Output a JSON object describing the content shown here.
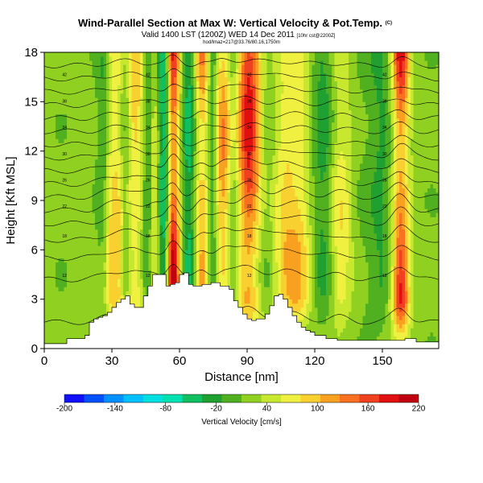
{
  "chart_data": {
    "type": "heatmap",
    "title": "Wind-Parallel Section at Max W: Vertical Velocity & Pot.Temp.",
    "copyright": "(C)",
    "subtitle": "Valid 1400 LST (1200Z) WED 14 Dec 2011",
    "subtitle_extra": "[10hr cst@2200Z]",
    "small_line": "hod/lmaz=217@33.76/80.16,1750m",
    "xlabel": "Distance [nm]",
    "ylabel": "Height [Kft MSL]",
    "xlim": [
      0,
      175
    ],
    "ylim": [
      0,
      18
    ],
    "xticks": [
      0,
      30,
      60,
      90,
      120,
      150
    ],
    "yticks": [
      0,
      3,
      6,
      9,
      12,
      15,
      18
    ],
    "colorbar": {
      "label": "Vertical Velocity [cm/s]",
      "ticks": [
        -200,
        -140,
        -80,
        -20,
        40,
        100,
        160,
        220
      ],
      "min": -200,
      "max": 220,
      "colors": [
        "#1010ff",
        "#0050ff",
        "#0090ff",
        "#00c0ff",
        "#00e0e0",
        "#00e0b0",
        "#10c060",
        "#20a030",
        "#50b020",
        "#90d020",
        "#c8e830",
        "#f0f040",
        "#f8d030",
        "#f8a020",
        "#f87020",
        "#f04020",
        "#e01010",
        "#c00010"
      ]
    },
    "terrain_profile": [
      [
        0,
        0.3
      ],
      [
        10,
        0.6
      ],
      [
        18,
        0.8
      ],
      [
        20,
        1.6
      ],
      [
        22,
        1.8
      ],
      [
        24,
        1.9
      ],
      [
        26,
        2.0
      ],
      [
        28,
        2.2
      ],
      [
        30,
        2.5
      ],
      [
        32,
        2.8
      ],
      [
        34,
        3.0
      ],
      [
        36,
        3.2
      ],
      [
        38,
        2.7
      ],
      [
        40,
        2.5
      ],
      [
        42,
        2.5
      ],
      [
        44,
        3.2
      ],
      [
        46,
        3.8
      ],
      [
        48,
        4.5
      ],
      [
        50,
        4.5
      ],
      [
        52,
        4.5
      ],
      [
        54,
        3.8
      ],
      [
        56,
        3.9
      ],
      [
        58,
        4.0
      ],
      [
        60,
        4.5
      ],
      [
        62,
        4.6
      ],
      [
        64,
        3.9
      ],
      [
        66,
        3.8
      ],
      [
        70,
        3.9
      ],
      [
        74,
        4.0
      ],
      [
        78,
        3.8
      ],
      [
        82,
        3.6
      ],
      [
        84,
        2.9
      ],
      [
        86,
        2.5
      ],
      [
        88,
        2.1
      ],
      [
        90,
        1.8
      ],
      [
        92,
        1.7
      ],
      [
        94,
        1.8
      ],
      [
        96,
        1.8
      ],
      [
        98,
        2.1
      ],
      [
        100,
        2.6
      ],
      [
        102,
        3.2
      ],
      [
        104,
        3.3
      ],
      [
        106,
        3.0
      ],
      [
        108,
        2.5
      ],
      [
        110,
        2.0
      ],
      [
        112,
        1.6
      ],
      [
        114,
        1.3
      ],
      [
        116,
        1.1
      ],
      [
        118,
        1.0
      ],
      [
        120,
        0.8
      ],
      [
        125,
        0.6
      ],
      [
        130,
        0.5
      ],
      [
        140,
        0.5
      ],
      [
        150,
        0.5
      ],
      [
        155,
        0.5
      ],
      [
        160,
        0.6
      ],
      [
        165,
        0.4
      ],
      [
        175,
        0.3
      ]
    ],
    "updraft_columns": [
      {
        "x": 31,
        "w": 6,
        "amp": 90
      },
      {
        "x": 40,
        "w": 5,
        "amp": 80
      },
      {
        "x": 49,
        "w": 3,
        "amp": 70
      },
      {
        "x": 57,
        "w": 3,
        "amp": 220
      },
      {
        "x": 70,
        "w": 3,
        "amp": 120
      },
      {
        "x": 79,
        "w": 4,
        "amp": 110
      },
      {
        "x": 91,
        "w": 6,
        "amp": 180
      },
      {
        "x": 106,
        "w": 5,
        "amp": 60
      },
      {
        "x": 113,
        "w": 6,
        "amp": 80
      },
      {
        "x": 131,
        "w": 5,
        "amp": 70
      },
      {
        "x": 158,
        "w": 4,
        "amp": 190
      }
    ],
    "downdraft_columns": [
      {
        "x": 26,
        "w": 3,
        "amp": -50
      },
      {
        "x": 36,
        "w": 2.5,
        "amp": -60
      },
      {
        "x": 46,
        "w": 2.5,
        "amp": -60
      },
      {
        "x": 53,
        "w": 3,
        "amp": -100
      },
      {
        "x": 64,
        "w": 3,
        "amp": -60
      },
      {
        "x": 75,
        "w": 2.5,
        "amp": -50
      },
      {
        "x": 84,
        "w": 3,
        "amp": -40
      },
      {
        "x": 97,
        "w": 5,
        "amp": -30
      },
      {
        "x": 124,
        "w": 6,
        "amp": -45
      },
      {
        "x": 150,
        "w": 8,
        "amp": -35
      }
    ],
    "theta_contours": [
      {
        "base": 1.6,
        "label": ""
      },
      {
        "base": 4.2,
        "label": "12"
      },
      {
        "base": 5.5,
        "label": ""
      },
      {
        "base": 6.6,
        "label": "18"
      },
      {
        "base": 7.6,
        "label": ""
      },
      {
        "base": 8.4,
        "label": "22"
      },
      {
        "base": 9.2,
        "label": ""
      },
      {
        "base": 10.0,
        "label": "26"
      },
      {
        "base": 10.8,
        "label": ""
      },
      {
        "base": 11.6,
        "label": "30"
      },
      {
        "base": 12.4,
        "label": ""
      },
      {
        "base": 13.2,
        "label": "34"
      },
      {
        "base": 14.0,
        "label": ""
      },
      {
        "base": 14.8,
        "label": "38"
      },
      {
        "base": 15.6,
        "label": ""
      },
      {
        "base": 16.4,
        "label": "42"
      },
      {
        "base": 17.2,
        "label": ""
      }
    ]
  }
}
